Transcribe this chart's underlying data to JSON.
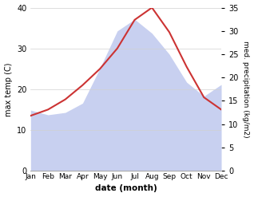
{
  "months": [
    "Jan",
    "Feb",
    "Mar",
    "Apr",
    "May",
    "Jun",
    "Jul",
    "Aug",
    "Sep",
    "Oct",
    "Nov",
    "Dec"
  ],
  "max_temp": [
    13.5,
    15.0,
    17.5,
    21.0,
    25.0,
    30.0,
    37.0,
    40.0,
    34.0,
    25.5,
    18.0,
    15.0
  ],
  "precipitation": [
    13.0,
    12.0,
    12.5,
    14.5,
    22.0,
    30.0,
    32.5,
    29.5,
    25.0,
    19.0,
    16.0,
    18.5
  ],
  "temp_color": "#cc3333",
  "precip_fill_color": "#c8d0f0",
  "ylim_left": [
    0,
    40
  ],
  "ylim_right": [
    0,
    35
  ],
  "yticks_left": [
    0,
    10,
    20,
    30,
    40
  ],
  "yticks_right": [
    0,
    5,
    10,
    15,
    20,
    25,
    30,
    35
  ],
  "xlabel": "date (month)",
  "ylabel_left": "max temp (C)",
  "ylabel_right": "med. precipitation (kg/m2)",
  "background_color": "#ffffff",
  "grid_color": "#d0d0d0"
}
